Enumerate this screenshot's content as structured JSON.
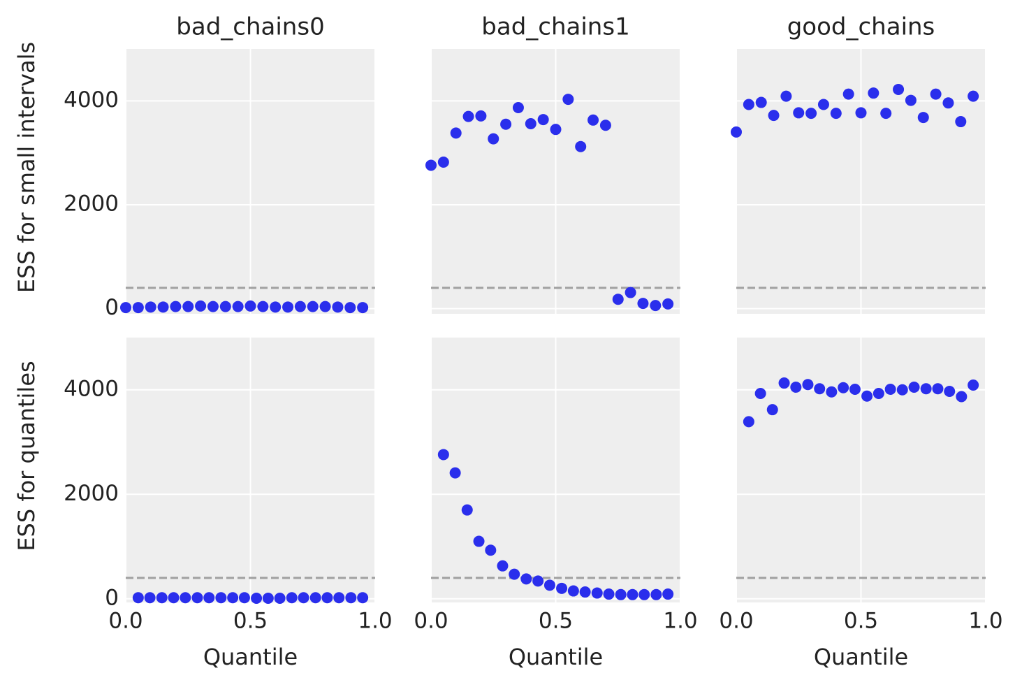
{
  "chart_data": [
    {
      "type": "scatter",
      "title": "bad_chains0",
      "ylabel": "ESS for small intervals",
      "color": "#2a2eec",
      "x": [
        0,
        0.05,
        0.1,
        0.15,
        0.2,
        0.25,
        0.3,
        0.35,
        0.4,
        0.45,
        0.5,
        0.55,
        0.6,
        0.65,
        0.7,
        0.75,
        0.8,
        0.85,
        0.9,
        0.95
      ],
      "values": [
        20,
        20,
        30,
        30,
        40,
        40,
        50,
        40,
        40,
        40,
        50,
        40,
        30,
        30,
        40,
        40,
        40,
        30,
        20,
        20
      ],
      "hline": 400,
      "xlim": [
        0,
        1
      ],
      "ylim": [
        -100,
        5000
      ],
      "xticks": [
        {
          "value": 0,
          "label": "0.0"
        },
        0.5,
        {
          "value": 1,
          "label": "1.0"
        }
      ],
      "yticks": [
        0,
        2000,
        4000
      ],
      "grid": true
    },
    {
      "type": "scatter",
      "title": "bad_chains1",
      "color": "#2a2eec",
      "x": [
        0,
        0.05,
        0.1,
        0.15,
        0.2,
        0.25,
        0.3,
        0.35,
        0.4,
        0.45,
        0.5,
        0.55,
        0.6,
        0.65,
        0.7,
        0.75,
        0.8,
        0.85,
        0.9,
        0.95
      ],
      "values": [
        2760,
        2820,
        3380,
        3700,
        3710,
        3270,
        3550,
        3870,
        3560,
        3640,
        3450,
        4030,
        3120,
        3630,
        3530,
        180,
        310,
        100,
        60,
        90
      ],
      "hline": 400,
      "xlim": [
        0,
        1
      ],
      "ylim": [
        -100,
        5000
      ],
      "xticks": [
        {
          "value": 0,
          "label": "0.0"
        },
        0.5,
        {
          "value": 1,
          "label": "1.0"
        }
      ],
      "yticks": [
        0,
        2000,
        4000
      ],
      "grid": true
    },
    {
      "type": "scatter",
      "title": "good_chains",
      "color": "#2a2eec",
      "x": [
        0,
        0.05,
        0.1,
        0.15,
        0.2,
        0.25,
        0.3,
        0.35,
        0.4,
        0.45,
        0.5,
        0.55,
        0.6,
        0.65,
        0.7,
        0.75,
        0.8,
        0.85,
        0.9,
        0.95
      ],
      "values": [
        3400,
        3930,
        3970,
        3720,
        4090,
        3770,
        3760,
        3930,
        3760,
        4130,
        3770,
        4150,
        3760,
        4220,
        4010,
        3680,
        4130,
        3960,
        3600,
        4090
      ],
      "hline": 400,
      "xlim": [
        0,
        1
      ],
      "ylim": [
        -100,
        5000
      ],
      "xticks": [
        {
          "value": 0,
          "label": "0.0"
        },
        0.5,
        {
          "value": 1,
          "label": "1.0"
        }
      ],
      "yticks": [
        0,
        2000,
        4000
      ],
      "grid": true
    },
    {
      "type": "scatter",
      "xlabel": "Quantile",
      "ylabel": "ESS for quantiles",
      "color": "#2a2eec",
      "x": [
        0.05,
        0.097,
        0.145,
        0.192,
        0.239,
        0.287,
        0.334,
        0.382,
        0.429,
        0.476,
        0.524,
        0.571,
        0.618,
        0.666,
        0.713,
        0.761,
        0.808,
        0.855,
        0.903,
        0.95
      ],
      "values": [
        20,
        20,
        20,
        20,
        20,
        20,
        20,
        20,
        20,
        20,
        10,
        10,
        10,
        20,
        20,
        20,
        20,
        20,
        20,
        20
      ],
      "hline": 400,
      "xlim": [
        0,
        1
      ],
      "ylim": [
        -70,
        5000
      ],
      "xticks": [
        {
          "value": 0,
          "label": "0.0"
        },
        0.5,
        {
          "value": 1,
          "label": "1.0"
        }
      ],
      "yticks": [
        0,
        2000,
        4000
      ],
      "grid": true
    },
    {
      "type": "scatter",
      "xlabel": "Quantile",
      "color": "#2a2eec",
      "x": [
        0.05,
        0.097,
        0.145,
        0.192,
        0.239,
        0.287,
        0.334,
        0.382,
        0.429,
        0.476,
        0.524,
        0.571,
        0.618,
        0.666,
        0.713,
        0.761,
        0.808,
        0.855,
        0.903,
        0.95
      ],
      "values": [
        2760,
        2410,
        1700,
        1100,
        930,
        630,
        470,
        380,
        340,
        260,
        200,
        150,
        130,
        110,
        90,
        80,
        80,
        80,
        80,
        90
      ],
      "hline": 400,
      "xlim": [
        0,
        1
      ],
      "ylim": [
        -70,
        5000
      ],
      "xticks": [
        {
          "value": 0,
          "label": "0.0"
        },
        0.5,
        {
          "value": 1,
          "label": "1.0"
        }
      ],
      "yticks": [
        0,
        2000,
        4000
      ],
      "grid": true
    },
    {
      "type": "scatter",
      "xlabel": "Quantile",
      "color": "#2a2eec",
      "x": [
        0.05,
        0.097,
        0.145,
        0.192,
        0.239,
        0.287,
        0.334,
        0.382,
        0.429,
        0.476,
        0.524,
        0.571,
        0.618,
        0.666,
        0.713,
        0.761,
        0.808,
        0.855,
        0.903,
        0.95
      ],
      "values": [
        3390,
        3930,
        3620,
        4130,
        4050,
        4100,
        4020,
        3960,
        4040,
        4010,
        3880,
        3930,
        4010,
        4000,
        4050,
        4020,
        4020,
        3970,
        3870,
        4090
      ],
      "hline": 400,
      "xlim": [
        0,
        1
      ],
      "ylim": [
        -70,
        5000
      ],
      "xticks": [
        {
          "value": 0,
          "label": "0.0"
        },
        0.5,
        {
          "value": 1,
          "label": "1.0"
        }
      ],
      "yticks": [
        0,
        2000,
        4000
      ],
      "grid": true
    }
  ]
}
